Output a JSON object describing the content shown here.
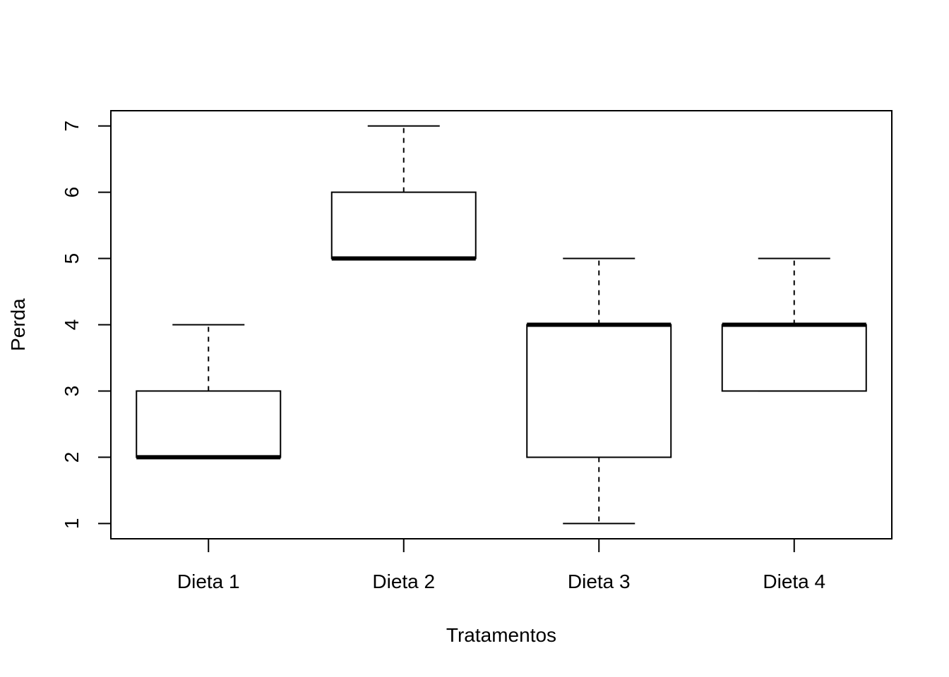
{
  "chart_data": {
    "type": "boxplot",
    "xlabel": "Tratamentos",
    "ylabel": "Perda",
    "ylim": [
      0.77,
      7.23
    ],
    "y_ticks": [
      1,
      2,
      3,
      4,
      5,
      6,
      7
    ],
    "categories": [
      "Dieta 1",
      "Dieta 2",
      "Dieta 3",
      "Dieta 4"
    ],
    "boxes": [
      {
        "category": "Dieta 1",
        "min": 2,
        "q1": 2,
        "median": 2,
        "q3": 3,
        "max": 4
      },
      {
        "category": "Dieta 2",
        "min": 5,
        "q1": 5,
        "median": 5,
        "q3": 6,
        "max": 7
      },
      {
        "category": "Dieta 3",
        "min": 1,
        "q1": 2,
        "median": 4,
        "q3": 4,
        "max": 5
      },
      {
        "category": "Dieta 4",
        "min": 3,
        "q1": 3,
        "median": 4,
        "q3": 4,
        "max": 5
      }
    ],
    "grid": false,
    "legend": "none"
  }
}
